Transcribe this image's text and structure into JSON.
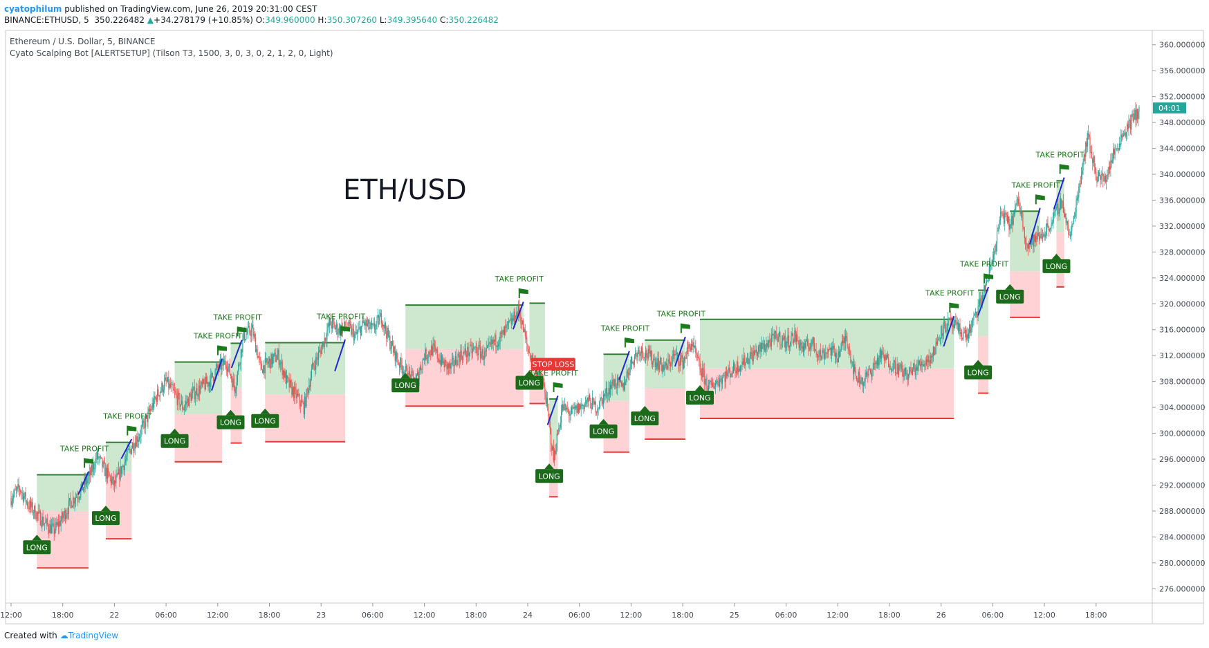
{
  "header": {
    "author": "cyatophilum",
    "published_text": "published on TradingView.com, June 26, 2019 20:31:00 CEST",
    "symbol": "BINANCE:ETHUSD, 5",
    "last_price": "350.226482",
    "change": "+34.278179 (+10.85%)",
    "open_label": "O:",
    "open": "349.960000",
    "high_label": "H:",
    "high": "350.307260",
    "low_label": "L:",
    "low": "349.395640",
    "close_label": "C:",
    "close": "350.226482",
    "up_arrow": "▲"
  },
  "chart_data": {
    "type": "candlestick",
    "title": "Ethereum / U.S. Dollar, 5, BINANCE",
    "indicator": "Cyato Scalping Bot [ALERTSETUP] (Tilson T3, 1500, 3, 0, 3, 0, 2, 1, 2, 0, Light)",
    "watermark": "ETH/USD",
    "ylim": [
      274,
      362
    ],
    "y_ticks": [
      "276.000000",
      "280.000000",
      "284.000000",
      "288.000000",
      "292.000000",
      "296.000000",
      "300.000000",
      "304.000000",
      "308.000000",
      "312.000000",
      "316.000000",
      "320.000000",
      "324.000000",
      "328.000000",
      "332.000000",
      "336.000000",
      "340.000000",
      "344.000000",
      "348.000000",
      "352.000000",
      "356.000000",
      "360.000000"
    ],
    "x_ticks": [
      {
        "label": "12:00",
        "t": 0
      },
      {
        "label": "18:00",
        "t": 6
      },
      {
        "label": "22",
        "t": 12
      },
      {
        "label": "06:00",
        "t": 18
      },
      {
        "label": "12:00",
        "t": 24
      },
      {
        "label": "18:00",
        "t": 30
      },
      {
        "label": "23",
        "t": 36
      },
      {
        "label": "06:00",
        "t": 42
      },
      {
        "label": "12:00",
        "t": 48
      },
      {
        "label": "18:00",
        "t": 54
      },
      {
        "label": "24",
        "t": 60
      },
      {
        "label": "06:00",
        "t": 66
      },
      {
        "label": "12:00",
        "t": 72
      },
      {
        "label": "18:00",
        "t": 78
      },
      {
        "label": "25",
        "t": 84
      },
      {
        "label": "06:00",
        "t": 90
      },
      {
        "label": "12:00",
        "t": 96
      },
      {
        "label": "18:00",
        "t": 102
      },
      {
        "label": "26",
        "t": 108
      },
      {
        "label": "06:00",
        "t": 114
      },
      {
        "label": "12:00",
        "t": 120
      },
      {
        "label": "18:00",
        "t": 126
      }
    ],
    "last_price_label": "04:01",
    "last_price": 350.23,
    "price_path": [
      [
        0,
        290
      ],
      [
        1,
        291.5
      ],
      [
        2,
        289
      ],
      [
        3,
        287.5
      ],
      [
        4,
        286
      ],
      [
        5,
        285
      ],
      [
        6,
        287
      ],
      [
        7,
        289.5
      ],
      [
        8,
        291
      ],
      [
        9,
        293
      ],
      [
        10,
        296.5
      ],
      [
        11,
        294
      ],
      [
        12,
        292
      ],
      [
        13,
        295
      ],
      [
        14,
        298
      ],
      [
        15,
        300
      ],
      [
        16,
        303
      ],
      [
        17,
        306
      ],
      [
        18,
        308
      ],
      [
        19,
        306
      ],
      [
        20,
        304
      ],
      [
        21,
        306
      ],
      [
        22,
        307
      ],
      [
        23,
        308
      ],
      [
        24,
        310
      ],
      [
        25,
        311
      ],
      [
        26,
        307
      ],
      [
        27,
        315
      ],
      [
        28,
        316
      ],
      [
        29,
        310
      ],
      [
        30,
        311
      ],
      [
        31,
        312
      ],
      [
        32,
        308
      ],
      [
        33,
        306
      ],
      [
        34,
        304
      ],
      [
        35,
        310
      ],
      [
        36,
        313
      ],
      [
        37,
        317
      ],
      [
        38,
        316
      ],
      [
        39,
        316.5
      ],
      [
        40,
        315
      ],
      [
        41,
        317
      ],
      [
        42,
        316
      ],
      [
        43,
        318
      ],
      [
        44,
        314
      ],
      [
        45,
        311
      ],
      [
        46,
        309
      ],
      [
        47,
        308
      ],
      [
        48,
        312
      ],
      [
        49,
        313
      ],
      [
        50,
        311
      ],
      [
        51,
        310
      ],
      [
        52,
        312
      ],
      [
        53,
        312.5
      ],
      [
        54,
        313
      ],
      [
        55,
        312
      ],
      [
        56,
        314
      ],
      [
        57,
        315
      ],
      [
        58,
        317
      ],
      [
        59,
        319
      ],
      [
        60,
        313
      ],
      [
        61,
        310
      ],
      [
        62,
        306.5
      ],
      [
        63,
        296
      ],
      [
        64,
        304
      ],
      [
        65,
        303
      ],
      [
        66,
        304
      ],
      [
        67,
        305
      ],
      [
        68,
        304
      ],
      [
        69,
        306
      ],
      [
        70,
        308
      ],
      [
        71,
        307
      ],
      [
        72,
        311
      ],
      [
        73,
        313
      ],
      [
        74,
        312
      ],
      [
        75,
        311
      ],
      [
        76,
        310
      ],
      [
        77,
        312
      ],
      [
        78,
        311
      ],
      [
        79,
        314
      ],
      [
        80,
        310
      ],
      [
        81,
        307
      ],
      [
        82,
        308
      ],
      [
        83,
        309
      ],
      [
        84,
        310
      ],
      [
        85,
        311
      ],
      [
        86,
        312
      ],
      [
        87,
        313
      ],
      [
        88,
        314
      ],
      [
        89,
        315
      ],
      [
        90,
        314
      ],
      [
        91,
        315
      ],
      [
        92,
        313
      ],
      [
        93,
        314
      ],
      [
        94,
        312
      ],
      [
        95,
        313
      ],
      [
        96,
        312
      ],
      [
        97,
        315
      ],
      [
        98,
        309
      ],
      [
        99,
        308
      ],
      [
        100,
        310
      ],
      [
        101,
        312
      ],
      [
        102,
        311
      ],
      [
        103,
        310
      ],
      [
        104,
        309
      ],
      [
        105,
        310
      ],
      [
        106,
        311
      ],
      [
        107,
        312
      ],
      [
        108,
        316
      ],
      [
        109,
        317
      ],
      [
        110,
        316
      ],
      [
        111,
        315
      ],
      [
        112,
        318
      ],
      [
        113,
        322
      ],
      [
        114,
        327
      ],
      [
        115,
        334
      ],
      [
        116,
        332
      ],
      [
        117,
        336
      ],
      [
        118,
        329
      ],
      [
        119,
        330
      ],
      [
        120,
        331
      ],
      [
        121,
        333
      ],
      [
        122,
        336
      ],
      [
        123,
        330
      ],
      [
        124,
        338
      ],
      [
        125,
        346
      ],
      [
        126,
        340
      ],
      [
        127,
        339
      ],
      [
        128,
        343
      ],
      [
        129,
        346
      ],
      [
        130,
        348
      ],
      [
        131,
        350
      ]
    ],
    "trades": [
      {
        "start": 3,
        "end": 9,
        "entry": 288,
        "tp": 293.6,
        "sl": 279.2,
        "result": "TAKE PROFIT",
        "label": "LONG"
      },
      {
        "start": 11,
        "end": 14,
        "entry": 294,
        "tp": 298.6,
        "sl": 283.7,
        "result": "TAKE PROFIT",
        "label": "LONG"
      },
      {
        "start": 19,
        "end": 24.5,
        "entry": 303,
        "tp": 311,
        "sl": 295.6,
        "result": "TAKE PROFIT",
        "label": "LONG"
      },
      {
        "start": 25.5,
        "end": 26.8,
        "entry": 307,
        "tp": 313.9,
        "sl": 298.5,
        "result": "TAKE PROFIT",
        "label": "LONG"
      },
      {
        "start": 29.5,
        "end": 38.8,
        "entry": 306,
        "tp": 314,
        "sl": 298.7,
        "result": "TAKE PROFIT",
        "label": "LONG"
      },
      {
        "start": 45.8,
        "end": 59.5,
        "entry": 313,
        "tp": 319.8,
        "sl": 304.2,
        "result": "TAKE PROFIT",
        "label": "LONG"
      },
      {
        "start": 60.2,
        "end": 62,
        "entry": 311,
        "tp": 320.1,
        "sl": 304.6,
        "result": "STOP LOSS",
        "label": "LONG"
      },
      {
        "start": 62.5,
        "end": 63.5,
        "entry": 298,
        "tp": 305.3,
        "sl": 290.2,
        "result": "TAKE PROFIT",
        "label": "LONG"
      },
      {
        "start": 68.8,
        "end": 71.8,
        "entry": 305,
        "tp": 312.2,
        "sl": 297.1,
        "result": "TAKE PROFIT",
        "label": "LONG"
      },
      {
        "start": 73.6,
        "end": 78.3,
        "entry": 307,
        "tp": 314.4,
        "sl": 299.1,
        "result": "TAKE PROFIT",
        "label": "LONG"
      },
      {
        "start": 80,
        "end": 109.5,
        "entry": 310,
        "tp": 317.6,
        "sl": 302.3,
        "result": "TAKE PROFIT",
        "label": "LONG"
      },
      {
        "start": 112.3,
        "end": 113.5,
        "entry": 315,
        "tp": 322.1,
        "sl": 306.2,
        "result": "TAKE PROFIT",
        "label": "LONG"
      },
      {
        "start": 116,
        "end": 119.5,
        "entry": 325,
        "tp": 334.3,
        "sl": 317.9,
        "result": "TAKE PROFIT",
        "label": "LONG"
      },
      {
        "start": 121.4,
        "end": 122.3,
        "entry": 331,
        "tp": 339,
        "sl": 322.6,
        "result": "TAKE PROFIT",
        "label": "LONG"
      }
    ],
    "colors": {
      "up": "#26a69a",
      "down": "#ef5350",
      "tp_zone": "#c8e6c9",
      "sl_zone": "#ffcdd2",
      "tp_line": "#2e7d32",
      "sl_line": "#e53935",
      "long_label": "#1b6b1b",
      "take_profit_text": "#1b7a1b",
      "stop_loss": "#e53935",
      "t3_line": "#1e28d0",
      "axis_text": "#434651",
      "last_price_bg": "#26a69a"
    }
  },
  "footer": {
    "created_with": "Created with",
    "brand": "TradingView"
  }
}
